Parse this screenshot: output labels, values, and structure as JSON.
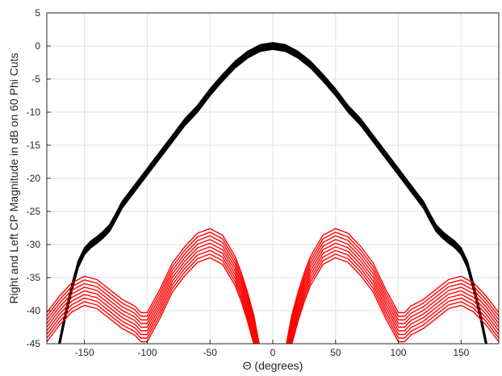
{
  "chart_data": {
    "type": "line",
    "title": "",
    "xlabel": "Θ (degrees)",
    "ylabel": "Right and Left CP Magnitude in dB on 60 Phi Cuts",
    "xlim": [
      -180,
      180
    ],
    "ylim": [
      -45,
      5
    ],
    "xticks": [
      -150,
      -100,
      -50,
      0,
      50,
      100,
      150
    ],
    "yticks": [
      5,
      0,
      -5,
      -10,
      -15,
      -20,
      -25,
      -30,
      -35,
      -40,
      -45
    ],
    "grid": true,
    "colors": {
      "rhcp": "#000000",
      "lhcp": "#ff0000",
      "grid": "#e2e2e2",
      "axis": "#262626"
    },
    "series": [
      {
        "key": "rhcp",
        "x": [
          -175,
          -170,
          -165,
          -160,
          -155,
          -150,
          -145,
          -140,
          -135,
          -130,
          -125,
          -120,
          -110,
          -100,
          -90,
          -80,
          -70,
          -60,
          -50,
          -40,
          -30,
          -20,
          -10,
          0,
          10,
          20,
          30,
          40,
          50,
          60,
          70,
          80,
          90,
          100,
          110,
          120,
          125,
          130,
          135,
          140,
          145,
          150,
          155,
          160,
          165,
          170,
          175
        ],
        "y": [
          -50,
          -45,
          -40.5,
          -36.5,
          -33,
          -31,
          -30,
          -29.3,
          -28.5,
          -27.5,
          -25.8,
          -24,
          -21.5,
          -19,
          -16.5,
          -14,
          -11.5,
          -9.5,
          -7,
          -4.8,
          -2.8,
          -1.3,
          -0.3,
          0,
          -0.3,
          -1.3,
          -2.8,
          -4.8,
          -7,
          -9.5,
          -11.5,
          -14,
          -16.5,
          -19,
          -21.5,
          -24,
          -25.8,
          -27.5,
          -28.5,
          -29.3,
          -30,
          -31,
          -33,
          -36.5,
          -40.5,
          -45,
          -50
        ],
        "spread": 0.5
      },
      {
        "key": "lhcp",
        "x": [
          -180,
          -170,
          -160,
          -150,
          -140,
          -130,
          -120,
          -110,
          -105,
          -100,
          -90,
          -80,
          -70,
          -60,
          -50,
          -40,
          -30,
          -25,
          -20,
          -15,
          -12,
          -10
        ],
        "y": [
          -42.5,
          -40,
          -38,
          -37,
          -37.5,
          -39,
          -40.5,
          -41.5,
          -42.5,
          -42.5,
          -39,
          -35,
          -32.5,
          -30.5,
          -29.8,
          -30.8,
          -34,
          -36.5,
          -39.5,
          -43,
          -46,
          -48
        ],
        "spread": 2.2
      },
      {
        "key": "lhcp",
        "x": [
          10,
          12,
          15,
          20,
          25,
          30,
          40,
          50,
          60,
          70,
          80,
          90,
          100,
          105,
          110,
          120,
          130,
          140,
          150,
          160,
          170,
          180
        ],
        "y": [
          -48,
          -46,
          -43,
          -39.5,
          -36.5,
          -34,
          -30.8,
          -29.8,
          -30.5,
          -32.5,
          -35,
          -39,
          -42.5,
          -42.5,
          -41.5,
          -40.5,
          -39,
          -37.5,
          -37,
          -38,
          -40,
          -42.5
        ],
        "spread": 2.2
      }
    ]
  }
}
